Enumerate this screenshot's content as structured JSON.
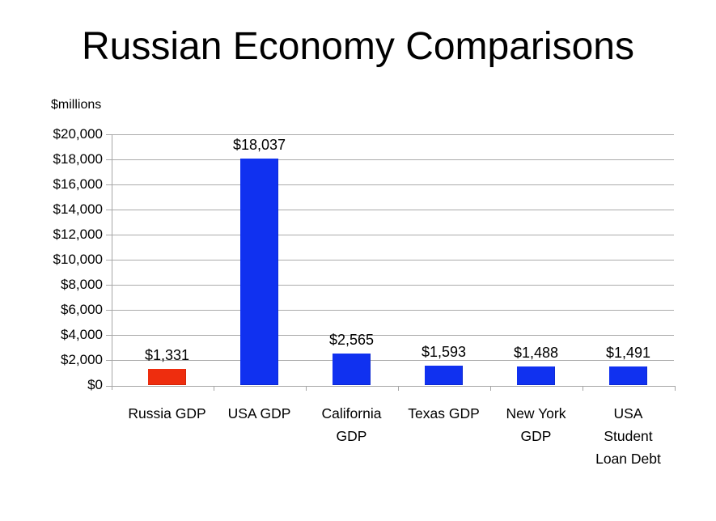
{
  "page": {
    "title": "Russian Economy Comparisons",
    "unit_label": "$millions"
  },
  "chart_data": {
    "type": "bar",
    "title": "Russian Economy Comparisons",
    "ylabel": "$millions",
    "xlabel": "",
    "categories": [
      "Russia GDP",
      "USA GDP",
      "California GDP",
      "Texas GDP",
      "New York GDP",
      "USA Student Loan Debt"
    ],
    "category_lines": [
      [
        "Russia GDP"
      ],
      [
        "USA GDP"
      ],
      [
        "California",
        "GDP"
      ],
      [
        "Texas GDP"
      ],
      [
        "New York",
        "GDP"
      ],
      [
        "USA",
        "Student",
        "Loan Debt"
      ]
    ],
    "values": [
      1331,
      18037,
      2565,
      1593,
      1488,
      1491
    ],
    "value_labels": [
      "$1,331",
      "$18,037",
      "$2,565",
      "$1,593",
      "$1,488",
      "$1,491"
    ],
    "bar_colors": [
      "#ee2d0e",
      "#1031f0",
      "#1031f0",
      "#1031f0",
      "#1031f0",
      "#1031f0"
    ],
    "ylim": [
      0,
      20000
    ],
    "ytick_interval": 2000,
    "ytick_labels": [
      "$0",
      "$2,000",
      "$4,000",
      "$6,000",
      "$8,000",
      "$10,000",
      "$12,000",
      "$14,000",
      "$16,000",
      "$18,000",
      "$20,000"
    ],
    "grid": true,
    "legend_position": "none",
    "colors": {
      "grid": "#ababab",
      "axis": "#a6a6a6",
      "text": "#000000",
      "background": "#ffffff"
    }
  }
}
